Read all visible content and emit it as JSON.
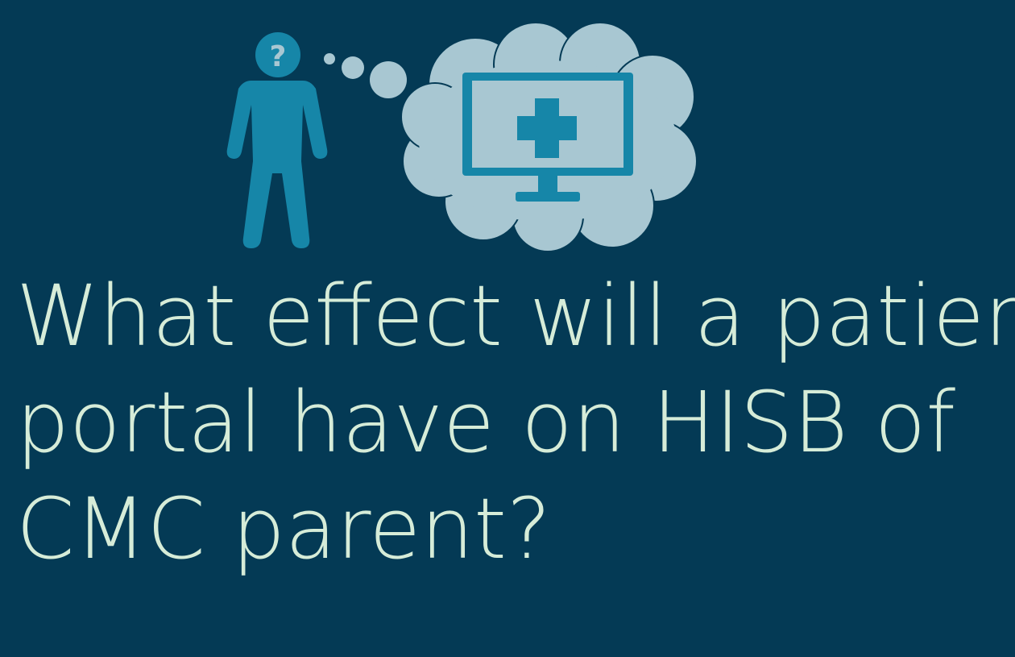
{
  "slide": {
    "headline_lines": [
      "What effect will a patient",
      "portal have on HISB of",
      "CMC parent?"
    ],
    "person_mark": "?"
  },
  "colors": {
    "background": "#043a55",
    "text": "#d6ecd8",
    "person": "#1686a8",
    "cloud": "#a8c7d2",
    "monitor": "#1686a8"
  },
  "icons": [
    "person-icon",
    "thought-bubble-icon",
    "cloud-icon",
    "monitor-icon",
    "medical-cross-icon"
  ]
}
